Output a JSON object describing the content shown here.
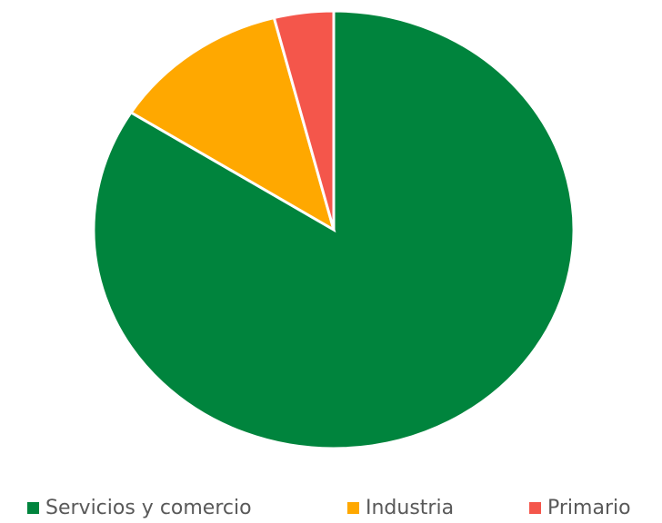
{
  "chart_data": {
    "type": "pie",
    "categories": [
      "Servicios y comercio",
      "Industria",
      "Primario"
    ],
    "values": [
      84,
      12,
      4
    ],
    "colors": [
      "#00843d",
      "#ffa800",
      "#f4564b"
    ],
    "legend": "bottom"
  }
}
